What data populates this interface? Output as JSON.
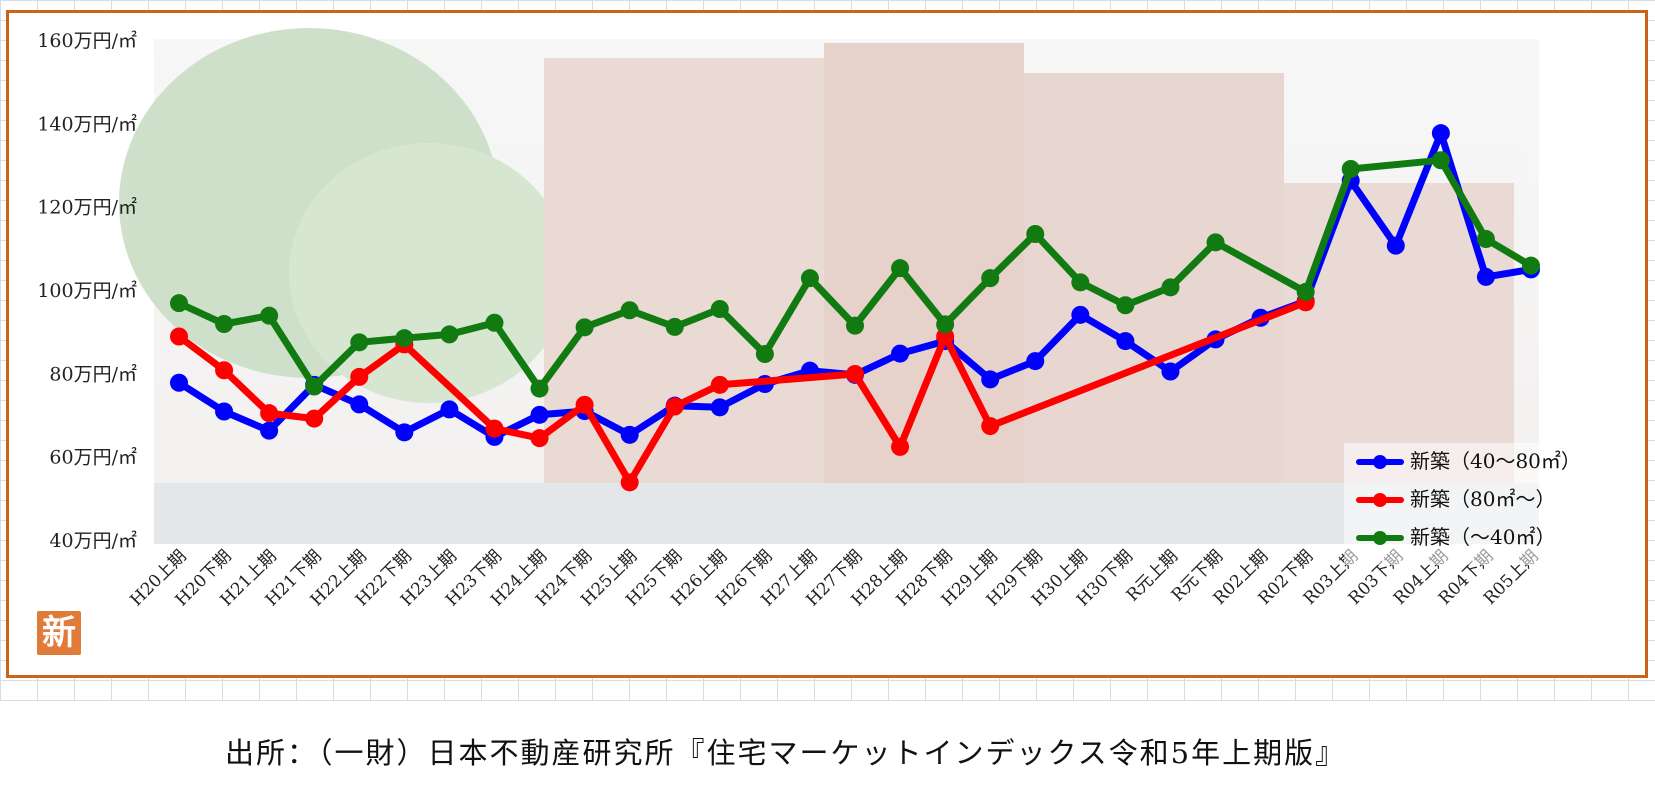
{
  "source_note": "出所：（一財）日本不動産研究所『住宅マーケットインデックス令和5年上期版』",
  "new_icon_label": "新",
  "colors": {
    "frame": "#c8651b",
    "blue": "#0000ff",
    "red": "#ff0000",
    "green": "#117a11"
  },
  "chart_data": {
    "type": "line",
    "title": "",
    "xlabel": "",
    "ylabel": "",
    "ylim": [
      40,
      160
    ],
    "yticks": [
      {
        "value": 160,
        "label": "160万円/㎡"
      },
      {
        "value": 140,
        "label": "140万円/㎡"
      },
      {
        "value": 120,
        "label": "120万円/㎡"
      },
      {
        "value": 100,
        "label": "100万円/㎡"
      },
      {
        "value": 80,
        "label": "80万円/㎡"
      },
      {
        "value": 60,
        "label": "60万円/㎡"
      },
      {
        "value": 40,
        "label": "40万円/㎡"
      }
    ],
    "categories": [
      "H20上期",
      "H20下期",
      "H21上期",
      "H21下期",
      "H22上期",
      "H22下期",
      "H23上期",
      "H23下期",
      "H24上期",
      "H24下期",
      "H25上期",
      "H25下期",
      "H26上期",
      "H26下期",
      "H27上期",
      "H27下期",
      "H28上期",
      "H28下期",
      "H29上期",
      "H29下期",
      "H30上期",
      "H30下期",
      "R元上期",
      "R元下期",
      "R02上期",
      "R02下期",
      "R03上期",
      "R03下期",
      "R04上期",
      "R04下期",
      "R05上期"
    ],
    "legend_position": "bottom-right",
    "grid": false,
    "series": [
      {
        "name": "新築（40～80㎡）",
        "color": "#0000ff",
        "values": [
          77.5,
          70.6,
          66.0,
          77.0,
          72.3,
          65.6,
          71.1,
          64.5,
          69.8,
          70.7,
          65.0,
          72.0,
          71.6,
          77.2,
          80.4,
          79.4,
          84.5,
          87.5,
          78.3,
          82.7,
          93.8,
          87.5,
          80.2,
          87.9,
          93.1,
          97.1,
          126.0,
          110.4,
          137.4,
          102.9,
          104.7
        ]
      },
      {
        "name": "新築（80㎡～）",
        "color": "#ff0000",
        "values": [
          88.6,
          80.5,
          70.2,
          68.9,
          78.9,
          86.7,
          null,
          66.5,
          64.2,
          72.2,
          53.6,
          71.8,
          77.0,
          null,
          null,
          79.6,
          62.1,
          88.6,
          67.1,
          null,
          null,
          null,
          null,
          null,
          null,
          96.8,
          null,
          null,
          null,
          null,
          null
        ]
      },
      {
        "name": "新築（～40㎡）",
        "color": "#117a11",
        "values": [
          96.6,
          91.6,
          93.6,
          76.6,
          87.2,
          88.2,
          89.1,
          91.9,
          76.1,
          90.8,
          94.9,
          90.9,
          95.2,
          84.4,
          102.6,
          91.2,
          105.0,
          91.5,
          102.6,
          113.2,
          101.6,
          96.1,
          100.4,
          111.2,
          null,
          99.3,
          128.8,
          null,
          130.9,
          112.0,
          105.6
        ]
      }
    ]
  }
}
